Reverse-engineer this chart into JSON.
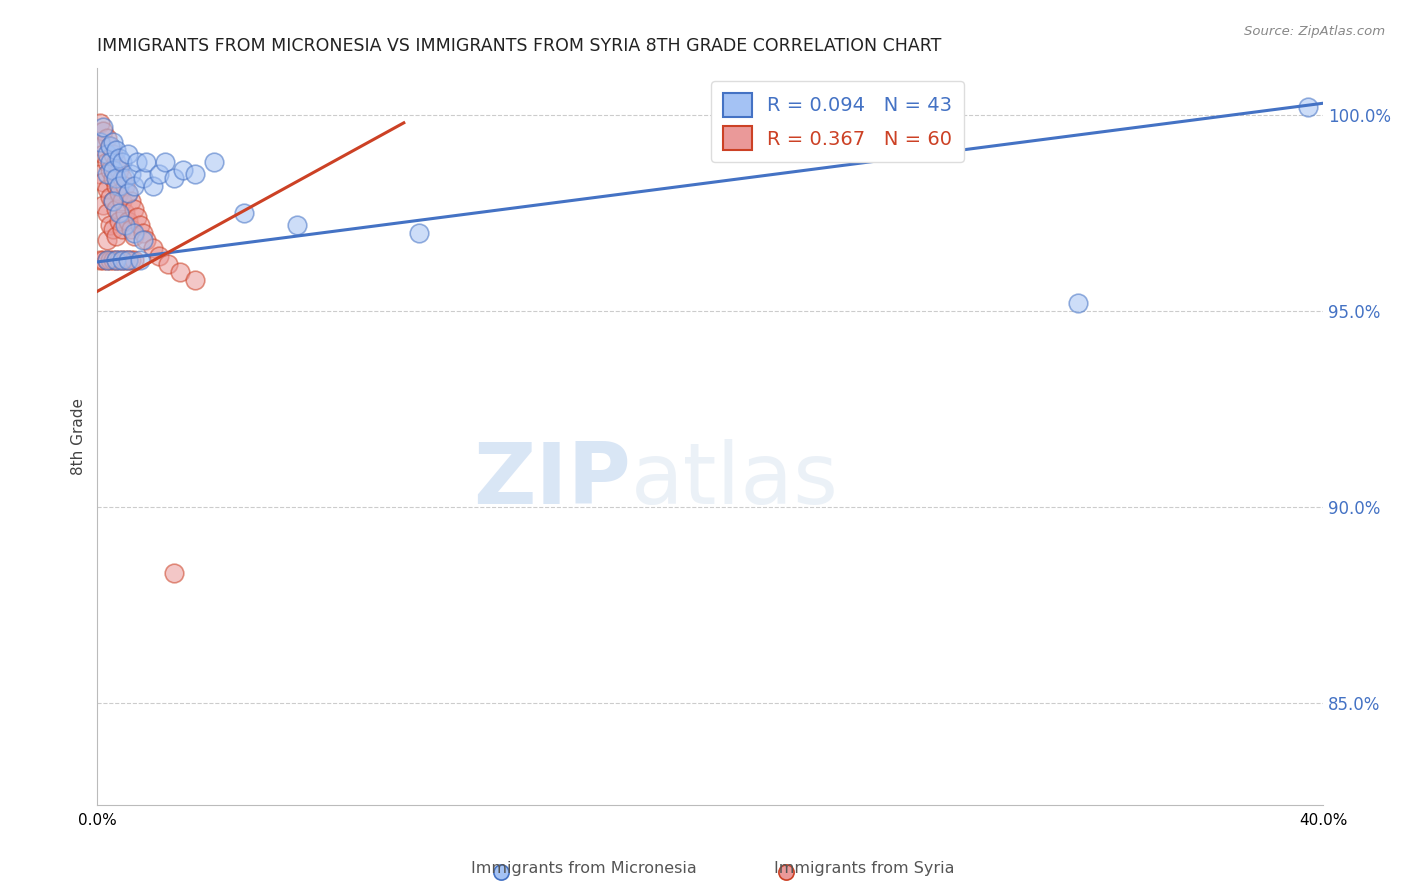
{
  "title": "IMMIGRANTS FROM MICRONESIA VS IMMIGRANTS FROM SYRIA 8TH GRADE CORRELATION CHART",
  "source": "Source: ZipAtlas.com",
  "ylabel": "8th Grade",
  "ylabel_ticks": [
    "85.0%",
    "90.0%",
    "95.0%",
    "100.0%"
  ],
  "ytick_vals": [
    0.85,
    0.9,
    0.95,
    1.0
  ],
  "xlim": [
    0.0,
    0.4
  ],
  "ylim": [
    0.824,
    1.012
  ],
  "legend_blue_r": "R = 0.094",
  "legend_blue_n": "N = 43",
  "legend_pink_r": "R = 0.367",
  "legend_pink_n": "N = 60",
  "watermark_zip": "ZIP",
  "watermark_atlas": "atlas",
  "blue_color": "#a4c2f4",
  "pink_color": "#ea9999",
  "line_blue": "#4472c4",
  "line_pink": "#cc4125",
  "blue_scatter_x": [
    0.001,
    0.002,
    0.003,
    0.003,
    0.004,
    0.004,
    0.005,
    0.005,
    0.006,
    0.006,
    0.007,
    0.007,
    0.008,
    0.009,
    0.01,
    0.01,
    0.011,
    0.012,
    0.013,
    0.015,
    0.016,
    0.018,
    0.02,
    0.022,
    0.025,
    0.028,
    0.032,
    0.038,
    0.005,
    0.007,
    0.009,
    0.012,
    0.015,
    0.048,
    0.065,
    0.105,
    0.32,
    0.395,
    0.003,
    0.006,
    0.008,
    0.01,
    0.014
  ],
  "blue_scatter_y": [
    0.993,
    0.997,
    0.99,
    0.985,
    0.992,
    0.988,
    0.993,
    0.986,
    0.991,
    0.984,
    0.989,
    0.982,
    0.988,
    0.984,
    0.99,
    0.98,
    0.985,
    0.982,
    0.988,
    0.984,
    0.988,
    0.982,
    0.985,
    0.988,
    0.984,
    0.986,
    0.985,
    0.988,
    0.978,
    0.975,
    0.972,
    0.97,
    0.968,
    0.975,
    0.972,
    0.97,
    0.952,
    1.002,
    0.963,
    0.963,
    0.963,
    0.963,
    0.963
  ],
  "pink_scatter_x": [
    0.001,
    0.001,
    0.001,
    0.002,
    0.002,
    0.002,
    0.002,
    0.003,
    0.003,
    0.003,
    0.003,
    0.003,
    0.004,
    0.004,
    0.004,
    0.004,
    0.005,
    0.005,
    0.005,
    0.005,
    0.006,
    0.006,
    0.006,
    0.006,
    0.007,
    0.007,
    0.007,
    0.008,
    0.008,
    0.008,
    0.009,
    0.009,
    0.01,
    0.01,
    0.011,
    0.011,
    0.012,
    0.012,
    0.013,
    0.014,
    0.015,
    0.016,
    0.018,
    0.02,
    0.023,
    0.027,
    0.032,
    0.001,
    0.002,
    0.003,
    0.004,
    0.005,
    0.006,
    0.007,
    0.008,
    0.009,
    0.01,
    0.011,
    0.012,
    0.025
  ],
  "pink_scatter_y": [
    0.998,
    0.992,
    0.985,
    0.996,
    0.99,
    0.983,
    0.977,
    0.994,
    0.988,
    0.981,
    0.975,
    0.968,
    0.992,
    0.986,
    0.979,
    0.972,
    0.99,
    0.984,
    0.978,
    0.971,
    0.988,
    0.982,
    0.976,
    0.969,
    0.986,
    0.98,
    0.973,
    0.984,
    0.978,
    0.971,
    0.982,
    0.975,
    0.98,
    0.973,
    0.978,
    0.971,
    0.976,
    0.969,
    0.974,
    0.972,
    0.97,
    0.968,
    0.966,
    0.964,
    0.962,
    0.96,
    0.958,
    0.963,
    0.963,
    0.963,
    0.963,
    0.963,
    0.963,
    0.963,
    0.963,
    0.963,
    0.963,
    0.963,
    0.963,
    0.883
  ],
  "blue_line_x": [
    0.0,
    0.4
  ],
  "blue_line_y": [
    0.9625,
    1.003
  ],
  "pink_line_x": [
    0.0,
    0.1
  ],
  "pink_line_y": [
    0.955,
    0.998
  ]
}
